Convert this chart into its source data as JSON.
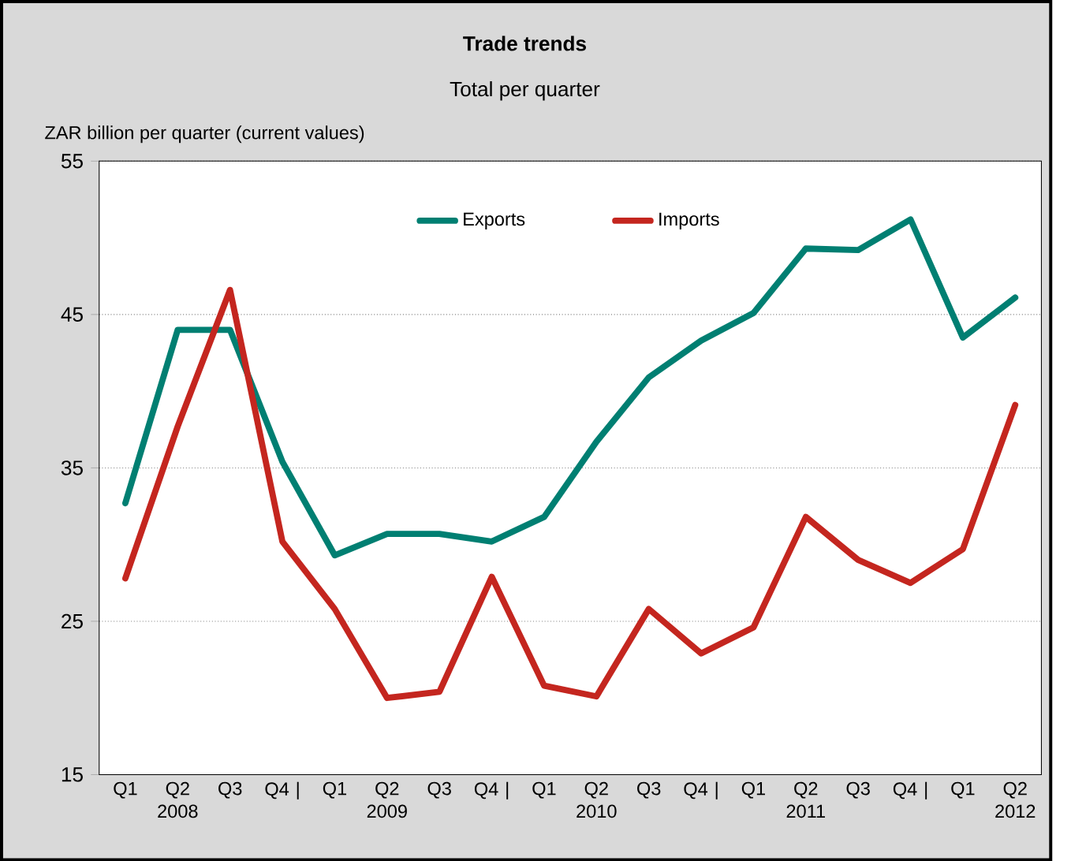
{
  "chart_data": {
    "type": "line",
    "title": "Trade trends",
    "subtitle": "Total per quarter",
    "ylabel": "ZAR billion per quarter (current values)",
    "categories": [
      "Q1",
      "Q2 2008",
      "Q3",
      "Q4 |",
      "Q1",
      "Q2 2009",
      "Q3",
      "Q4 |",
      "Q1",
      "Q2 2010",
      "Q3",
      "Q4 |",
      "Q1",
      "Q2 2011",
      "Q3",
      "Q4 |",
      "Q1",
      "Q2 2012"
    ],
    "series": [
      {
        "name": "Exports",
        "color": "#007f72",
        "values": [
          32.7,
          44.0,
          44.0,
          35.4,
          29.3,
          30.7,
          30.7,
          30.2,
          31.8,
          36.7,
          40.9,
          43.3,
          45.1,
          49.3,
          49.2,
          51.2,
          43.5,
          46.1
        ]
      },
      {
        "name": "Imports",
        "color": "#c4261f",
        "values": [
          27.8,
          37.7,
          46.6,
          30.2,
          25.8,
          20.0,
          20.4,
          27.9,
          20.8,
          20.1,
          25.8,
          22.9,
          24.6,
          31.8,
          29.0,
          27.5,
          29.7,
          39.1
        ]
      }
    ],
    "ylim": [
      15,
      55
    ],
    "yticks": [
      15,
      25,
      35,
      45,
      55
    ],
    "grid": "y",
    "legend": "top",
    "line_style": "solid",
    "marker": "none"
  }
}
